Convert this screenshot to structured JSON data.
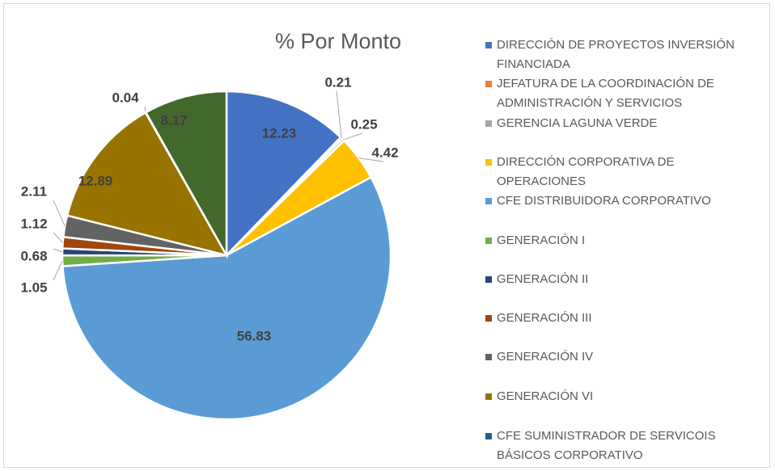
{
  "chart_data": {
    "type": "pie",
    "title": "% Por Monto",
    "categories": [
      "DIRECCIÓN DE PROYECTOS INVERSIÓN FINANCIADA",
      "JEFATURA DE LA COORDINACIÓN DE ADMINISTRACIÓN Y SERVICIOS",
      "GERENCIA LAGUNA VERDE",
      "DIRECCIÓN CORPORATIVA DE OPERACIONES",
      "CFE DISTRIBUIDORA CORPORATIVO",
      "GENERACIÓN I",
      "GENERACIÓN II",
      "GENERACIÓN III",
      "GENERACIÓN IV",
      "GENERACIÓN VI",
      "CFE SUMINISTRADOR DE SERVICOIS BÁSICOS CORPORATIVO",
      null
    ],
    "values": [
      12.23,
      0.21,
      0.25,
      4.42,
      56.83,
      1.05,
      0.68,
      1.12,
      2.11,
      12.89,
      0.04,
      8.17
    ],
    "colors": [
      "#4472c4",
      "#ed7d31",
      "#a5a5a5",
      "#ffc000",
      "#5b9bd5",
      "#70ad47",
      "#264478",
      "#9e480e",
      "#636363",
      "#997300",
      "#255e91",
      "#43682b"
    ],
    "legend": "right"
  }
}
